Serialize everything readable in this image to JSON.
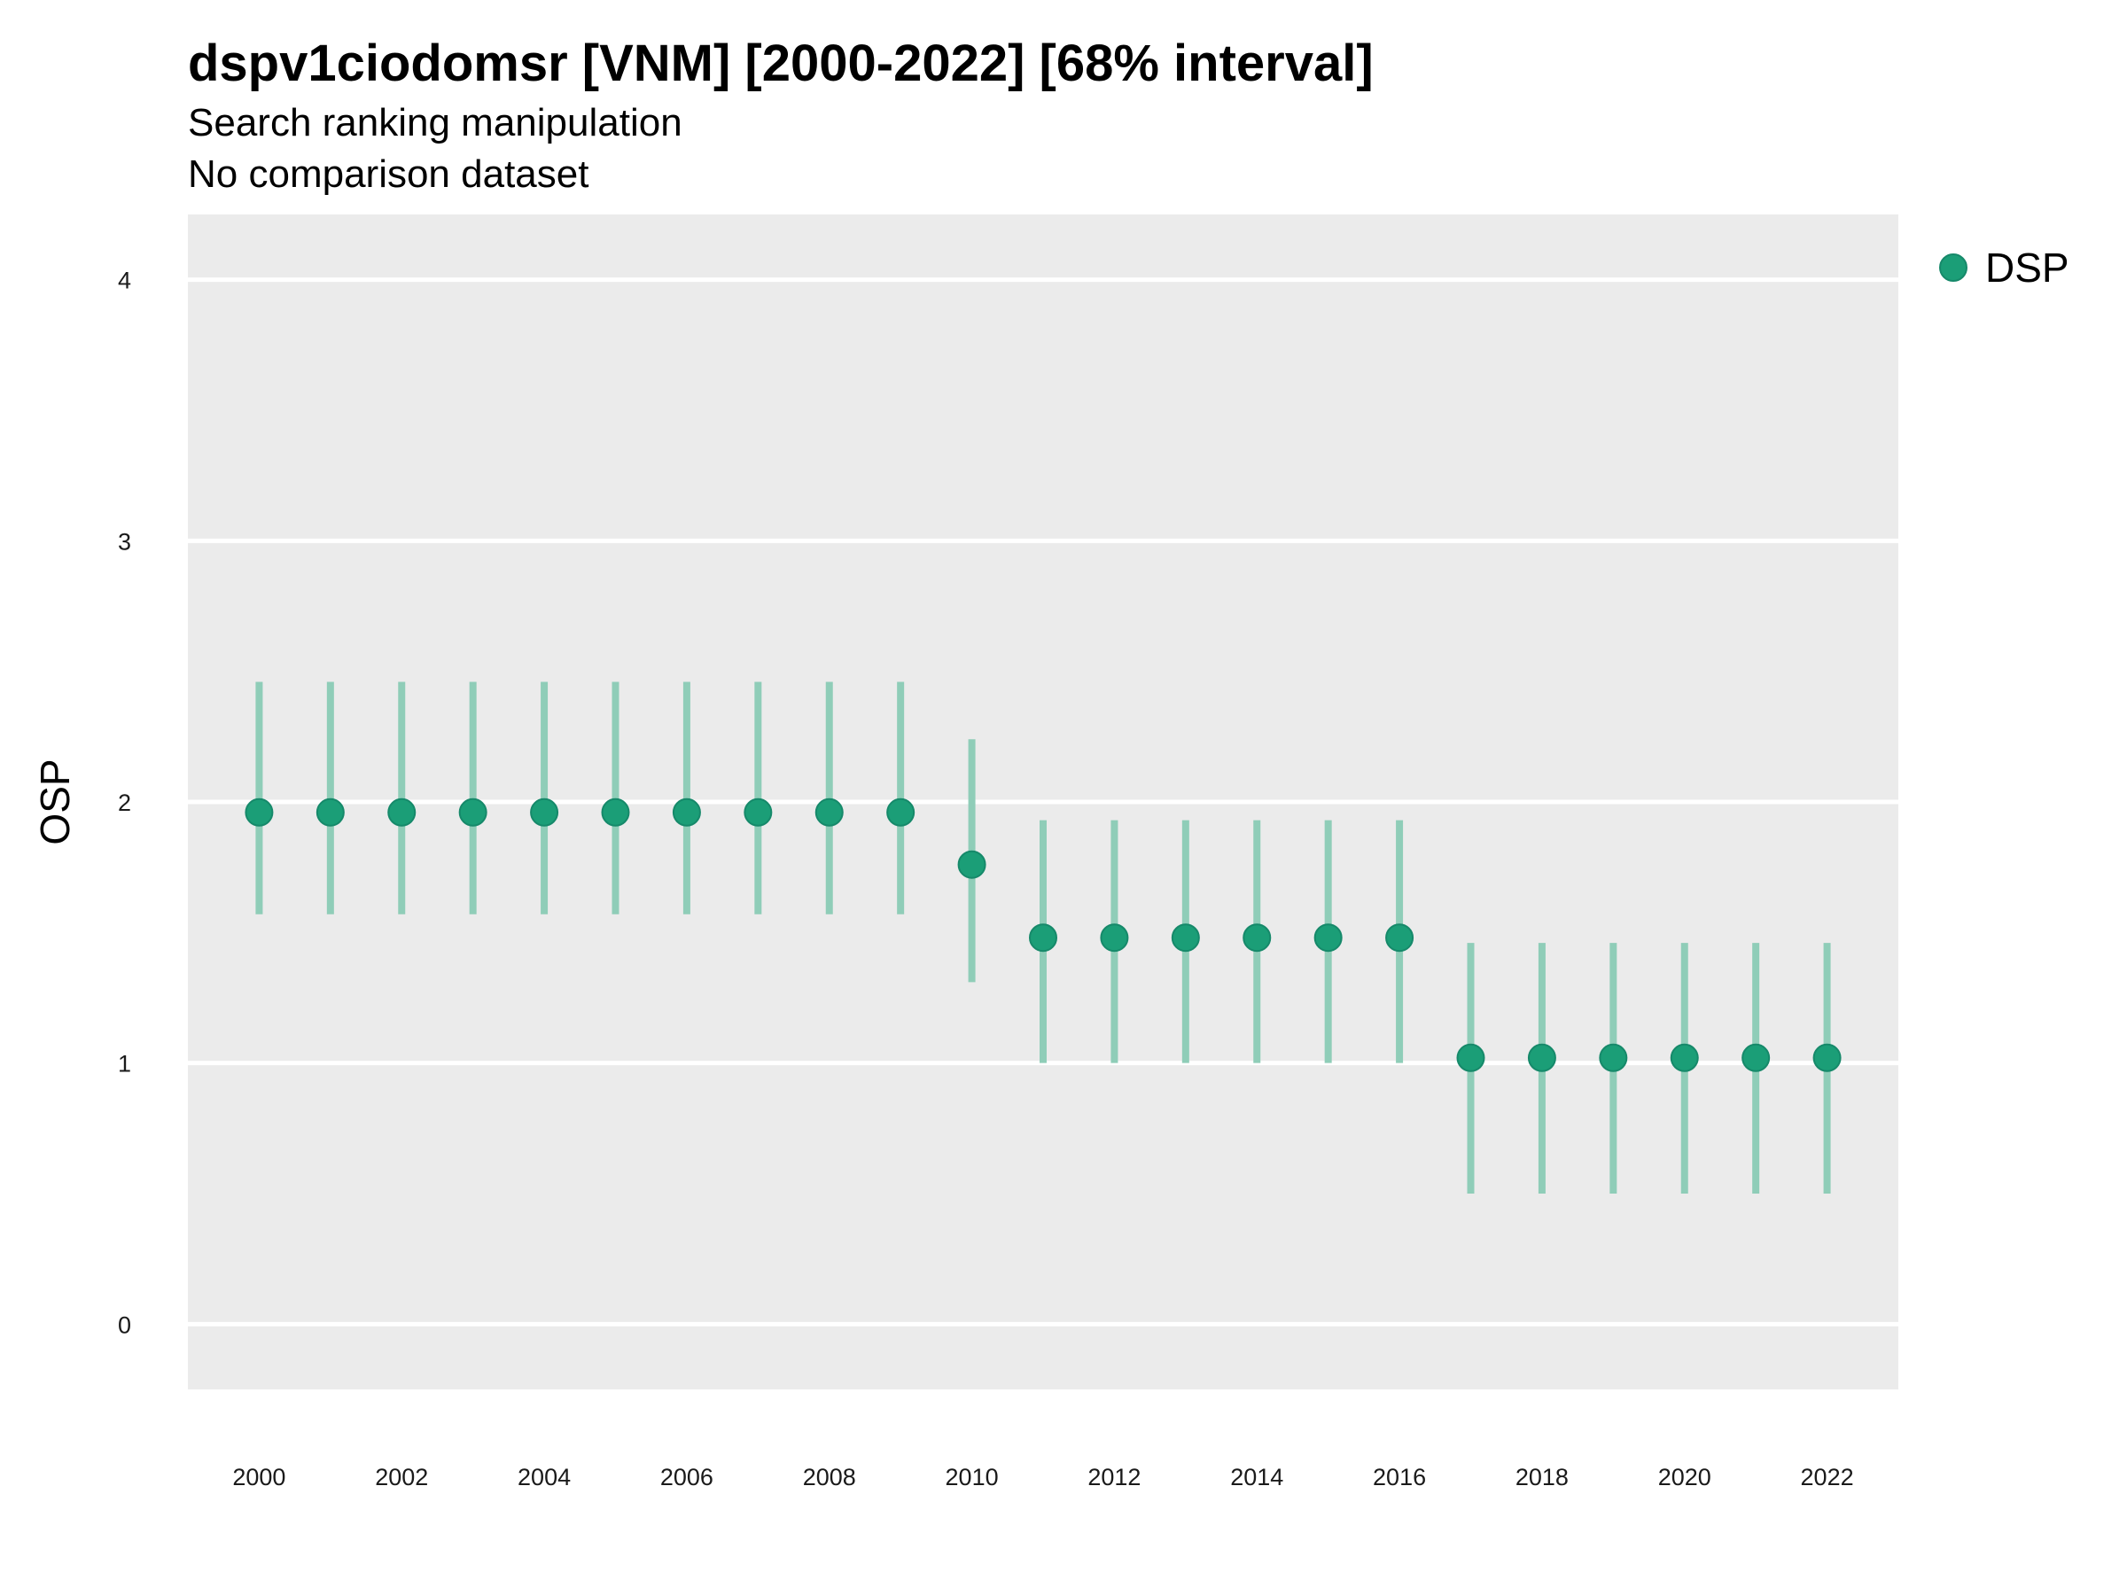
{
  "chart_data": {
    "type": "scatter",
    "title": "dspv1ciodomsr [VNM] [2000-2022] [68% interval]",
    "subtitle": [
      "Search ranking manipulation",
      "No comparison dataset"
    ],
    "xlabel": "",
    "ylabel": "OSP",
    "x_ticks": [
      2000,
      2002,
      2004,
      2006,
      2008,
      2010,
      2012,
      2014,
      2016,
      2018,
      2020,
      2022
    ],
    "y_ticks": [
      0,
      1,
      2,
      3,
      4
    ],
    "xlim": [
      1999,
      2023
    ],
    "ylim": [
      -0.25,
      4.25
    ],
    "grid": true,
    "legend_position": "right",
    "colors": {
      "point": "#1b9e77",
      "interval": "#8fcdb8",
      "panel": "#ebebeb",
      "grid": "#ffffff"
    },
    "series": [
      {
        "name": "DSP",
        "x": [
          2000,
          2001,
          2002,
          2003,
          2004,
          2005,
          2006,
          2007,
          2008,
          2009,
          2010,
          2011,
          2012,
          2013,
          2014,
          2015,
          2016,
          2017,
          2018,
          2019,
          2020,
          2021,
          2022
        ],
        "y": [
          1.96,
          1.96,
          1.96,
          1.96,
          1.96,
          1.96,
          1.96,
          1.96,
          1.96,
          1.96,
          1.76,
          1.48,
          1.48,
          1.48,
          1.48,
          1.48,
          1.48,
          1.02,
          1.02,
          1.02,
          1.02,
          1.02,
          1.02
        ],
        "lower": [
          1.57,
          1.57,
          1.57,
          1.57,
          1.57,
          1.57,
          1.57,
          1.57,
          1.57,
          1.57,
          1.31,
          1.0,
          1.0,
          1.0,
          1.0,
          1.0,
          1.0,
          0.5,
          0.5,
          0.5,
          0.5,
          0.5,
          0.5
        ],
        "upper": [
          2.46,
          2.46,
          2.46,
          2.46,
          2.46,
          2.46,
          2.46,
          2.46,
          2.46,
          2.46,
          2.24,
          1.93,
          1.93,
          1.93,
          1.93,
          1.93,
          1.93,
          1.46,
          1.46,
          1.46,
          1.46,
          1.46,
          1.46
        ]
      }
    ]
  }
}
